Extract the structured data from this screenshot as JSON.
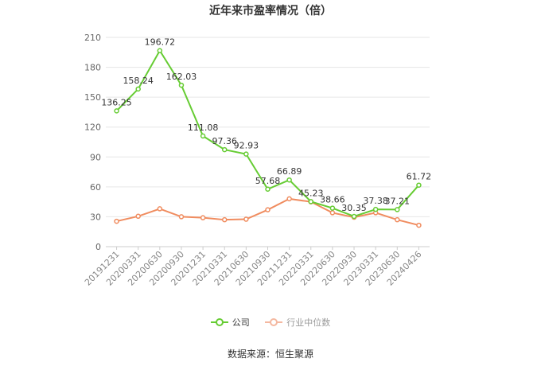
{
  "chart_data": {
    "type": "line",
    "title": "近年来市盈率情况（倍）",
    "categories": [
      "20191231",
      "20200331",
      "20200630",
      "20200930",
      "20201231",
      "20210331",
      "20210630",
      "20210930",
      "20211231",
      "20220331",
      "20220630",
      "20220930",
      "20230331",
      "20230630",
      "20240426"
    ],
    "series": [
      {
        "name": "公司",
        "color": "#66cc33",
        "values": [
          136.25,
          158.24,
          196.72,
          162.03,
          111.08,
          97.36,
          92.93,
          57.68,
          66.89,
          45.23,
          38.66,
          30.35,
          37.38,
          37.21,
          61.72
        ],
        "labels": [
          "136.25",
          "158.24",
          "196.72",
          "162.03",
          "111.08",
          "97.36",
          "92.93",
          "57.68",
          "66.89",
          "45.23",
          "38.66",
          "30.35",
          "37.38",
          "37.21",
          "61.72"
        ]
      },
      {
        "name": "行业中位数",
        "color": "#f08c5f",
        "values": [
          25.5,
          30.5,
          38.0,
          30.0,
          29.0,
          27.0,
          27.5,
          37.0,
          48.0,
          45.0,
          34.0,
          29.5,
          34.0,
          27.0,
          21.5
        ]
      }
    ],
    "ylim": [
      0,
      210
    ],
    "yticks": [
      0,
      30,
      60,
      90,
      120,
      150,
      180,
      210
    ],
    "grid": true,
    "legend_position": "bottom"
  },
  "source": "数据来源：恒生聚源"
}
